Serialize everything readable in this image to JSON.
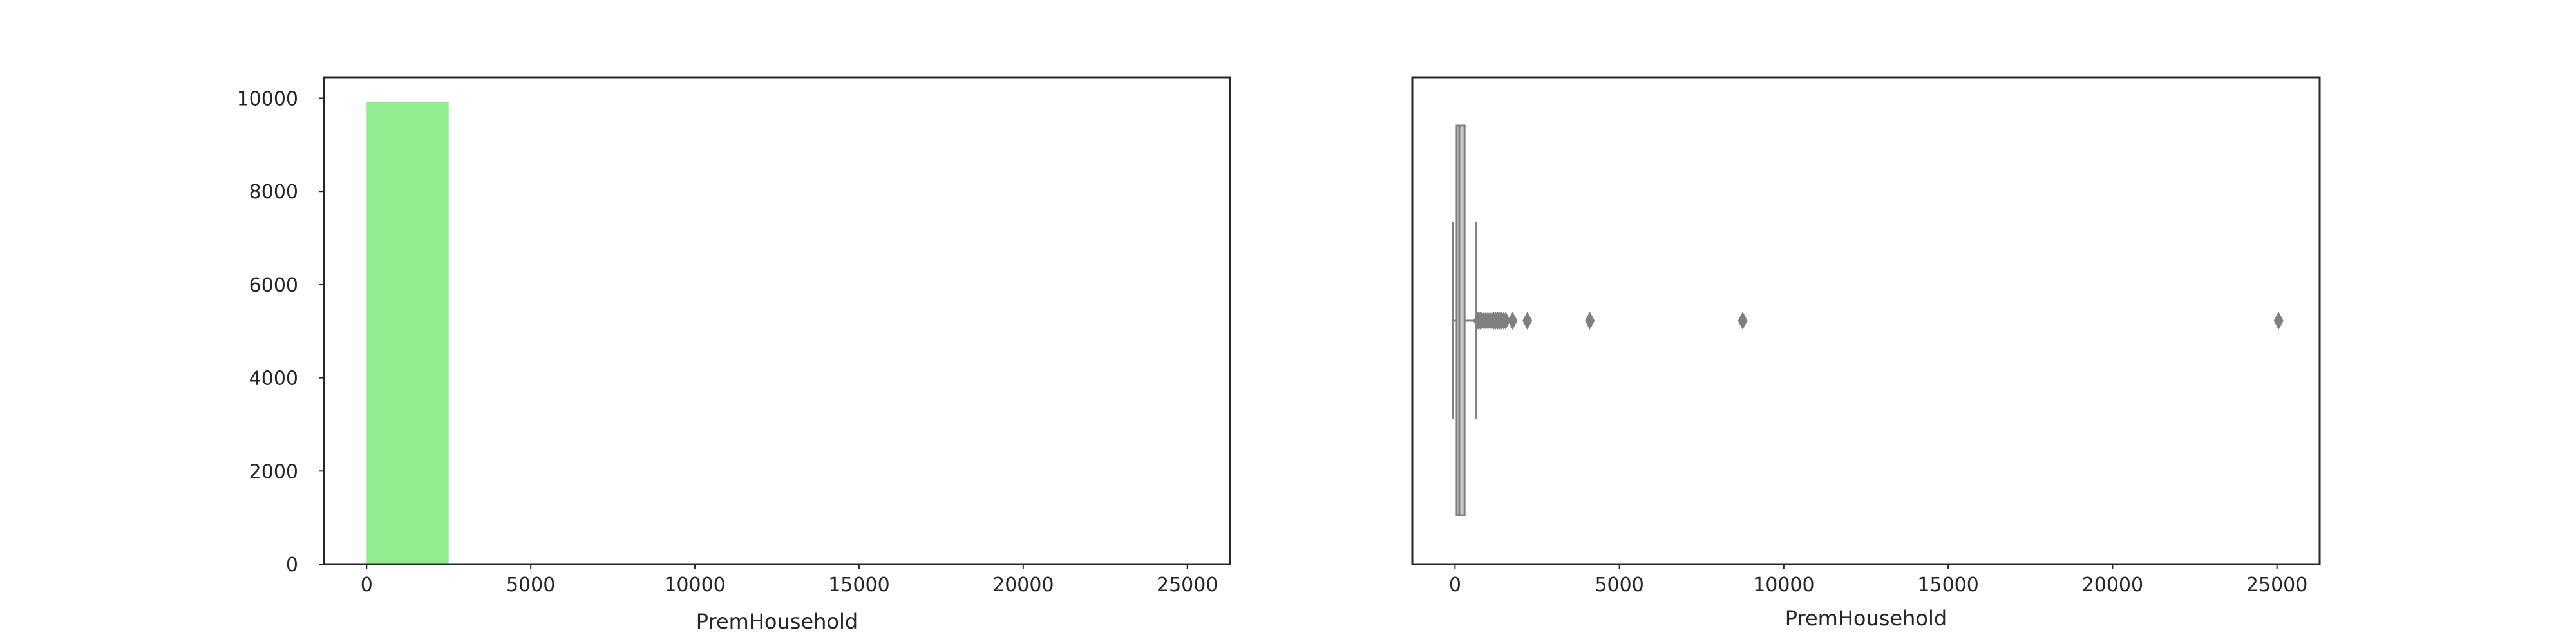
{
  "chart_data": [
    {
      "type": "bar",
      "subtype": "histogram",
      "xlabel": "PremHousehold",
      "ylabel": "",
      "title": "",
      "color": "#90ee90",
      "xlim": [
        -1300,
        26300
      ],
      "ylim": [
        0,
        10450
      ],
      "x_ticks": [
        0,
        5000,
        10000,
        15000,
        20000,
        25000
      ],
      "y_ticks": [
        0,
        2000,
        4000,
        6000,
        8000,
        10000
      ],
      "bins": [
        {
          "start": 0,
          "end": 2500,
          "value": 9920
        },
        {
          "start": 2500,
          "end": 5000,
          "value": 1
        },
        {
          "start": 7500,
          "end": 10000,
          "value": 1
        },
        {
          "start": 22500,
          "end": 25000,
          "value": 1
        }
      ],
      "grid": false
    },
    {
      "type": "box",
      "orientation": "horizontal",
      "xlabel": "PremHousehold",
      "ylabel": "",
      "title": "",
      "color": "#808080",
      "xlim": [
        -1300,
        26300
      ],
      "x_ticks": [
        0,
        5000,
        10000,
        15000,
        20000,
        25000
      ],
      "box": {
        "q1": 50,
        "median": 130,
        "q3": 290,
        "whisker_low": -75,
        "whisker_high": 650
      },
      "outliers": [
        700,
        760,
        820,
        880,
        940,
        1000,
        1060,
        1120,
        1180,
        1240,
        1300,
        1360,
        1420,
        1480,
        1540,
        1750,
        2200,
        4100,
        8750,
        25050
      ],
      "grid": false
    }
  ]
}
